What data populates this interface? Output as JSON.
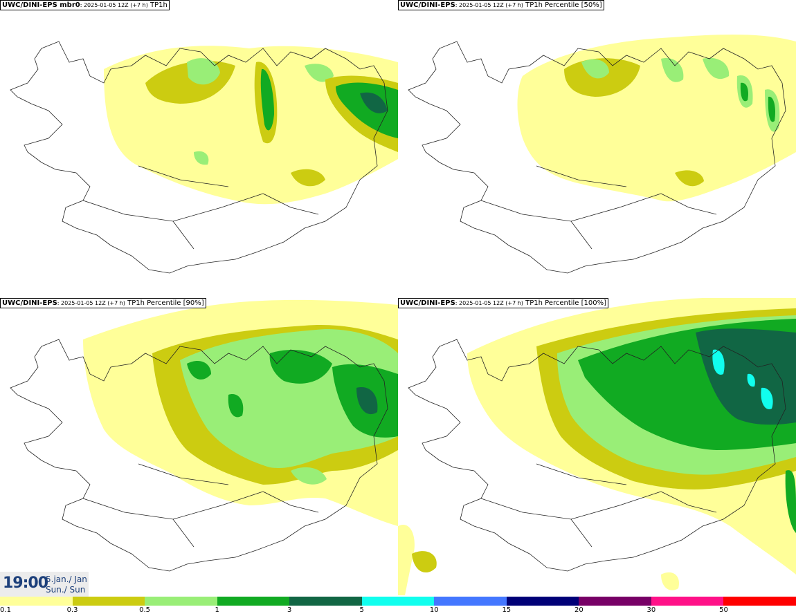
{
  "panels": [
    {
      "model": "UWC/DINI-EPS mbr0",
      "run": "2025-01-05 12Z (+7 h)",
      "field": "TP1h"
    },
    {
      "model": "UWC/DINI-EPS",
      "run": "2025-01-05 12Z (+7 h)",
      "field": "TP1h Percentile [50%]"
    },
    {
      "model": "UWC/DINI-EPS",
      "run": "2025-01-05 12Z (+7 h)",
      "field": "TP1h Percentile [90%]"
    },
    {
      "model": "UWC/DINI-EPS",
      "run": "2025-01-05 12Z (+7 h)",
      "field": "TP1h Percentile [100%]"
    }
  ],
  "valid_time": {
    "time": "19:00",
    "date": "5.jan./ Jan",
    "weekday": "Sun./ Sun"
  },
  "legend": {
    "labels": [
      "0.1",
      "0.3",
      "0.5",
      "1",
      "3",
      "5",
      "10",
      "15",
      "20",
      "30",
      "50"
    ],
    "colors": [
      "#ffff99",
      "#cccc11",
      "#99ee77",
      "#11aa22",
      "#116644",
      "#11ffee",
      "#4477ff",
      "#000077",
      "#770066",
      "#ff1188",
      "#ff0000"
    ]
  }
}
